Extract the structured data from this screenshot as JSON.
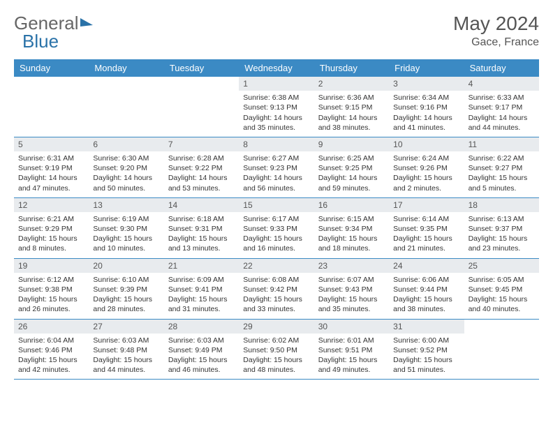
{
  "brand": {
    "part1": "General",
    "part2": "Blue"
  },
  "title": "May 2024",
  "location": "Gace, France",
  "colors": {
    "header_bg": "#3b8ac4",
    "header_text": "#ffffff",
    "daynum_bg": "#e8ebee",
    "rule": "#3b8ac4",
    "text": "#333333",
    "title_text": "#555555"
  },
  "dayNames": [
    "Sunday",
    "Monday",
    "Tuesday",
    "Wednesday",
    "Thursday",
    "Friday",
    "Saturday"
  ],
  "weeks": [
    [
      null,
      null,
      null,
      {
        "d": "1",
        "sr": "6:38 AM",
        "ss": "9:13 PM",
        "dl": "14 hours and 35 minutes."
      },
      {
        "d": "2",
        "sr": "6:36 AM",
        "ss": "9:15 PM",
        "dl": "14 hours and 38 minutes."
      },
      {
        "d": "3",
        "sr": "6:34 AM",
        "ss": "9:16 PM",
        "dl": "14 hours and 41 minutes."
      },
      {
        "d": "4",
        "sr": "6:33 AM",
        "ss": "9:17 PM",
        "dl": "14 hours and 44 minutes."
      }
    ],
    [
      {
        "d": "5",
        "sr": "6:31 AM",
        "ss": "9:19 PM",
        "dl": "14 hours and 47 minutes."
      },
      {
        "d": "6",
        "sr": "6:30 AM",
        "ss": "9:20 PM",
        "dl": "14 hours and 50 minutes."
      },
      {
        "d": "7",
        "sr": "6:28 AM",
        "ss": "9:22 PM",
        "dl": "14 hours and 53 minutes."
      },
      {
        "d": "8",
        "sr": "6:27 AM",
        "ss": "9:23 PM",
        "dl": "14 hours and 56 minutes."
      },
      {
        "d": "9",
        "sr": "6:25 AM",
        "ss": "9:25 PM",
        "dl": "14 hours and 59 minutes."
      },
      {
        "d": "10",
        "sr": "6:24 AM",
        "ss": "9:26 PM",
        "dl": "15 hours and 2 minutes."
      },
      {
        "d": "11",
        "sr": "6:22 AM",
        "ss": "9:27 PM",
        "dl": "15 hours and 5 minutes."
      }
    ],
    [
      {
        "d": "12",
        "sr": "6:21 AM",
        "ss": "9:29 PM",
        "dl": "15 hours and 8 minutes."
      },
      {
        "d": "13",
        "sr": "6:19 AM",
        "ss": "9:30 PM",
        "dl": "15 hours and 10 minutes."
      },
      {
        "d": "14",
        "sr": "6:18 AM",
        "ss": "9:31 PM",
        "dl": "15 hours and 13 minutes."
      },
      {
        "d": "15",
        "sr": "6:17 AM",
        "ss": "9:33 PM",
        "dl": "15 hours and 16 minutes."
      },
      {
        "d": "16",
        "sr": "6:15 AM",
        "ss": "9:34 PM",
        "dl": "15 hours and 18 minutes."
      },
      {
        "d": "17",
        "sr": "6:14 AM",
        "ss": "9:35 PM",
        "dl": "15 hours and 21 minutes."
      },
      {
        "d": "18",
        "sr": "6:13 AM",
        "ss": "9:37 PM",
        "dl": "15 hours and 23 minutes."
      }
    ],
    [
      {
        "d": "19",
        "sr": "6:12 AM",
        "ss": "9:38 PM",
        "dl": "15 hours and 26 minutes."
      },
      {
        "d": "20",
        "sr": "6:10 AM",
        "ss": "9:39 PM",
        "dl": "15 hours and 28 minutes."
      },
      {
        "d": "21",
        "sr": "6:09 AM",
        "ss": "9:41 PM",
        "dl": "15 hours and 31 minutes."
      },
      {
        "d": "22",
        "sr": "6:08 AM",
        "ss": "9:42 PM",
        "dl": "15 hours and 33 minutes."
      },
      {
        "d": "23",
        "sr": "6:07 AM",
        "ss": "9:43 PM",
        "dl": "15 hours and 35 minutes."
      },
      {
        "d": "24",
        "sr": "6:06 AM",
        "ss": "9:44 PM",
        "dl": "15 hours and 38 minutes."
      },
      {
        "d": "25",
        "sr": "6:05 AM",
        "ss": "9:45 PM",
        "dl": "15 hours and 40 minutes."
      }
    ],
    [
      {
        "d": "26",
        "sr": "6:04 AM",
        "ss": "9:46 PM",
        "dl": "15 hours and 42 minutes."
      },
      {
        "d": "27",
        "sr": "6:03 AM",
        "ss": "9:48 PM",
        "dl": "15 hours and 44 minutes."
      },
      {
        "d": "28",
        "sr": "6:03 AM",
        "ss": "9:49 PM",
        "dl": "15 hours and 46 minutes."
      },
      {
        "d": "29",
        "sr": "6:02 AM",
        "ss": "9:50 PM",
        "dl": "15 hours and 48 minutes."
      },
      {
        "d": "30",
        "sr": "6:01 AM",
        "ss": "9:51 PM",
        "dl": "15 hours and 49 minutes."
      },
      {
        "d": "31",
        "sr": "6:00 AM",
        "ss": "9:52 PM",
        "dl": "15 hours and 51 minutes."
      },
      null
    ]
  ],
  "labels": {
    "sunrise": "Sunrise:",
    "sunset": "Sunset:",
    "daylight": "Daylight:"
  }
}
